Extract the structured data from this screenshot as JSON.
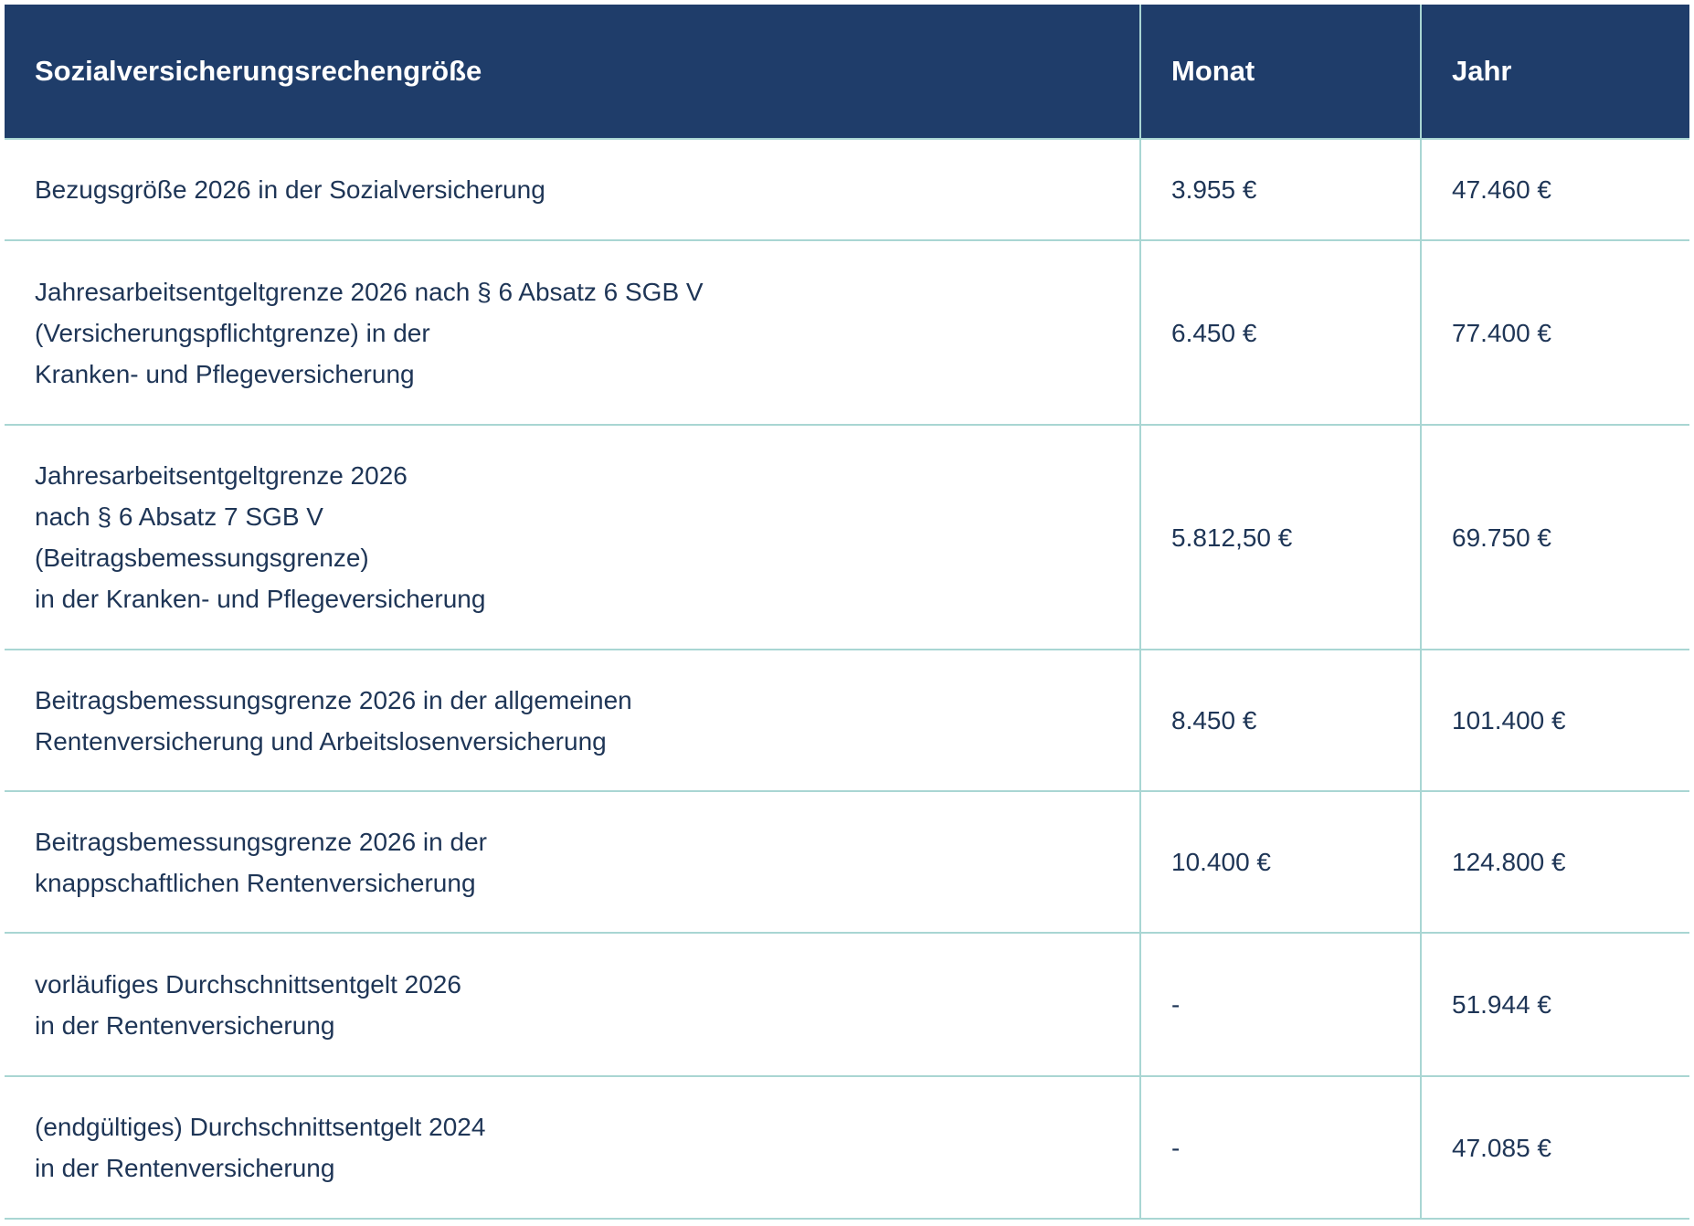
{
  "table": {
    "headers": [
      "Sozialversicherungsrechengröße",
      "Monat",
      "Jahr"
    ],
    "rows": [
      {
        "label": [
          "Bezugsgröße 2026 in der Sozialversicherung"
        ],
        "monat": "3.955 €",
        "jahr": "47.460 €"
      },
      {
        "label": [
          "Jahresarbeitsentgeltgrenze 2026 nach § 6 Absatz 6 SGB V",
          "(Versicherungspflichtgrenze) in der",
          "Kranken- und Pflegeversicherung"
        ],
        "monat": "6.450 €",
        "jahr": "77.400 €"
      },
      {
        "label": [
          "Jahresarbeitsentgeltgrenze 2026",
          "nach § 6 Absatz 7 SGB V",
          "(Beitragsbemessungsgrenze)",
          "in der Kranken- und Pflegeversicherung"
        ],
        "monat": "5.812,50 €",
        "jahr": "69.750 €"
      },
      {
        "label": [
          "Beitragsbemessungsgrenze 2026 in der allgemeinen",
          "Rentenversicherung und Arbeitslosenversicherung"
        ],
        "monat": "8.450 €",
        "jahr": "101.400 €"
      },
      {
        "label": [
          "Beitragsbemessungsgrenze 2026 in der",
          "knappschaftlichen Rentenversicherung"
        ],
        "monat": "10.400 €",
        "jahr": "124.800 €"
      },
      {
        "label": [
          "vorläufiges Durchschnittsentgelt 2026",
          "in der Rentenversicherung"
        ],
        "monat": "-",
        "jahr": "51.944 €"
      },
      {
        "label": [
          "(endgültiges) Durchschnittsentgelt 2024",
          "in der Rentenversicherung"
        ],
        "monat": "-",
        "jahr": "47.085 €"
      }
    ]
  },
  "colors": {
    "header_bg": "#1f3d6a",
    "border": "#a9d6d3",
    "text": "#1e3556"
  }
}
